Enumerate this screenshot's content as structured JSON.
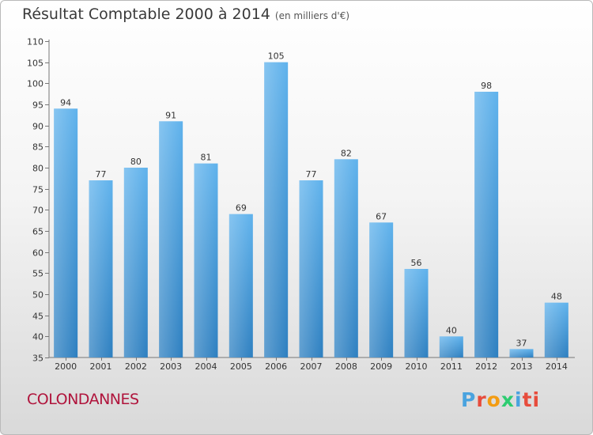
{
  "chart_data": {
    "type": "bar",
    "title": "Résultat Comptable 2000 à 2014",
    "subtitle": "(en milliers d'€)",
    "categories": [
      "2000",
      "2001",
      "2002",
      "2003",
      "2004",
      "2005",
      "2006",
      "2007",
      "2008",
      "2009",
      "2010",
      "2011",
      "2012",
      "2013",
      "2014"
    ],
    "values": [
      94,
      77,
      80,
      91,
      81,
      69,
      105,
      77,
      82,
      67,
      56,
      40,
      98,
      37,
      48
    ],
    "ylim": [
      35,
      110
    ],
    "yticks": [
      35,
      40,
      45,
      50,
      55,
      60,
      65,
      70,
      75,
      80,
      85,
      90,
      95,
      100,
      105,
      110
    ],
    "xlabel": "",
    "ylabel": "",
    "grid": false,
    "bar_color": "#4a9ee0"
  },
  "footer": {
    "commune": "COLONDANNES",
    "logo": [
      "P",
      "r",
      "o",
      "x",
      "i",
      "ti"
    ]
  }
}
